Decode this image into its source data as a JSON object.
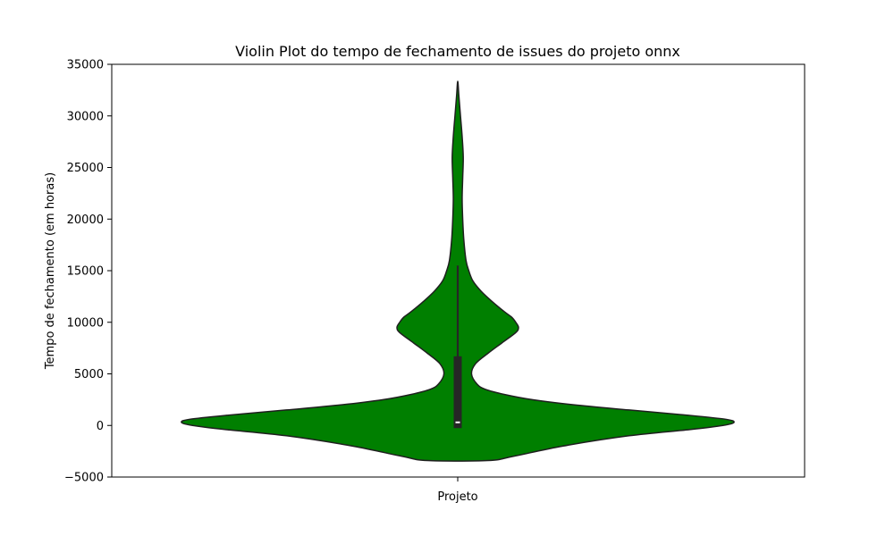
{
  "chart_data": {
    "type": "violin",
    "title": "Violin Plot do tempo de fechamento de issues do projeto onnx",
    "xlabel": "Projeto",
    "ylabel": "Tempo de fechamento (em horas)",
    "ylim": [
      -5000,
      35000
    ],
    "yticks": [
      -5000,
      0,
      5000,
      10000,
      15000,
      20000,
      25000,
      30000,
      35000
    ],
    "ytick_labels": [
      "−5000",
      "0",
      "5000",
      "10000",
      "15000",
      "20000",
      "25000",
      "30000",
      "35000"
    ],
    "grid": false,
    "fill_color": "#007f00",
    "edge_color": "#1f1f1f",
    "box": {
      "q1": 0,
      "median": 300,
      "q3": 6700,
      "whisker_low": 0,
      "whisker_high": 15500
    },
    "density_profile": [
      {
        "y": -3400,
        "w": 0.11
      },
      {
        "y": -3000,
        "w": 0.2
      },
      {
        "y": -2000,
        "w": 0.38
      },
      {
        "y": -1000,
        "w": 0.62
      },
      {
        "y": -400,
        "w": 0.84
      },
      {
        "y": 0,
        "w": 0.96
      },
      {
        "y": 300,
        "w": 1.0
      },
      {
        "y": 600,
        "w": 0.97
      },
      {
        "y": 1000,
        "w": 0.83
      },
      {
        "y": 1500,
        "w": 0.62
      },
      {
        "y": 2000,
        "w": 0.42
      },
      {
        "y": 2500,
        "w": 0.27
      },
      {
        "y": 3000,
        "w": 0.17
      },
      {
        "y": 3500,
        "w": 0.1
      },
      {
        "y": 4000,
        "w": 0.07
      },
      {
        "y": 5000,
        "w": 0.05
      },
      {
        "y": 6000,
        "w": 0.065
      },
      {
        "y": 7000,
        "w": 0.11
      },
      {
        "y": 8000,
        "w": 0.16
      },
      {
        "y": 9000,
        "w": 0.21
      },
      {
        "y": 9500,
        "w": 0.22
      },
      {
        "y": 10000,
        "w": 0.21
      },
      {
        "y": 10500,
        "w": 0.195
      },
      {
        "y": 11000,
        "w": 0.17
      },
      {
        "y": 12000,
        "w": 0.125
      },
      {
        "y": 13000,
        "w": 0.085
      },
      {
        "y": 14000,
        "w": 0.055
      },
      {
        "y": 15000,
        "w": 0.04
      },
      {
        "y": 16000,
        "w": 0.03
      },
      {
        "y": 18000,
        "w": 0.022
      },
      {
        "y": 20000,
        "w": 0.018
      },
      {
        "y": 22000,
        "w": 0.016
      },
      {
        "y": 24000,
        "w": 0.018
      },
      {
        "y": 26000,
        "w": 0.02
      },
      {
        "y": 28000,
        "w": 0.016
      },
      {
        "y": 30000,
        "w": 0.01
      },
      {
        "y": 32000,
        "w": 0.004
      },
      {
        "y": 33200,
        "w": 0.001
      }
    ]
  }
}
